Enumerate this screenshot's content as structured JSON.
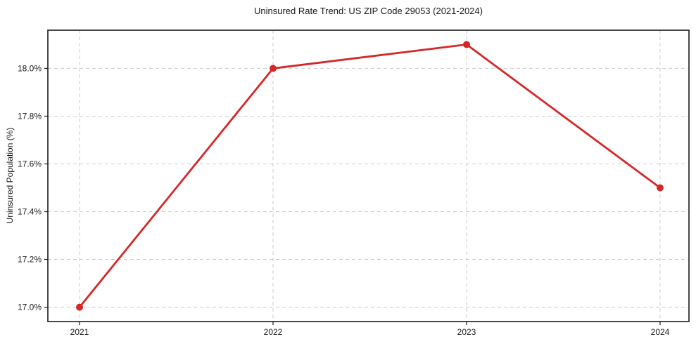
{
  "chart_data": {
    "type": "line",
    "title": "Uninsured Rate Trend: US ZIP Code 29053 (2021-2024)",
    "xlabel": "",
    "ylabel": "Uninsured Population (%)",
    "categories": [
      "2021",
      "2022",
      "2023",
      "2024"
    ],
    "series": [
      {
        "name": "Uninsured Rate",
        "values": [
          17.0,
          18.0,
          18.1,
          17.5
        ],
        "color": "#d62728",
        "marker": "circle"
      }
    ],
    "yticks": [
      {
        "value": 17.0,
        "label": "17.0%"
      },
      {
        "value": 17.2,
        "label": "17.2%"
      },
      {
        "value": 17.4,
        "label": "17.4%"
      },
      {
        "value": 17.6,
        "label": "17.6%"
      },
      {
        "value": 17.8,
        "label": "17.8%"
      },
      {
        "value": 18.0,
        "label": "18.0%"
      }
    ],
    "ylim": [
      16.94,
      18.16
    ],
    "grid": "dashed",
    "grid_color": "#cccccc",
    "spine_color": "#1a1a1a",
    "text_color": "#1a1a1a",
    "legend_position": "none",
    "background": "#ffffff"
  }
}
